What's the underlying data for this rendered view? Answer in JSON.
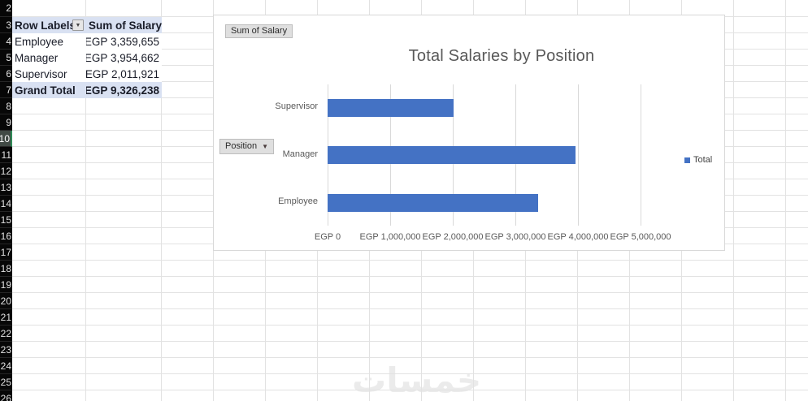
{
  "sheet": {
    "row_numbers": [
      "2",
      "3",
      "4",
      "5",
      "6",
      "7",
      "8",
      "9",
      "10",
      "11",
      "12",
      "13",
      "14",
      "15",
      "16",
      "17",
      "18",
      "19",
      "20",
      "21",
      "22",
      "23",
      "24",
      "25",
      "26"
    ],
    "selected_row": "10"
  },
  "pivot": {
    "headers": {
      "row_labels": "Row Labels",
      "sum_of_salary": "Sum of Salary"
    },
    "rows": [
      {
        "label": "Employee",
        "value": "EGP 3,359,655"
      },
      {
        "label": "Manager",
        "value": "EGP 3,954,662"
      },
      {
        "label": "Supervisor",
        "value": "EGP 2,011,921"
      }
    ],
    "grand_total": {
      "label": "Grand Total",
      "value": "EGP 9,326,238"
    },
    "filter_icon": "▼"
  },
  "chart": {
    "value_field_button": "Sum of Salary",
    "axis_field_button": "Position",
    "dropdown_icon": "▼",
    "title": "Total Salaries by Position",
    "legend_label": "Total",
    "bar_color": "#4472C4"
  },
  "chart_data": {
    "type": "bar",
    "orientation": "horizontal",
    "title": "Total Salaries by Position",
    "categories": [
      "Supervisor",
      "Manager",
      "Employee"
    ],
    "series": [
      {
        "name": "Total",
        "values": [
          2011921,
          3954662,
          3359655
        ]
      }
    ],
    "x_tick_labels": [
      "EGP 0",
      "EGP 1,000,000",
      "EGP 2,000,000",
      "EGP 3,000,000",
      "EGP 4,000,000",
      "EGP 5,000,000"
    ],
    "xlim": [
      0,
      5000000
    ],
    "grid": true,
    "legend_position": "right"
  },
  "watermark": "خمسات"
}
